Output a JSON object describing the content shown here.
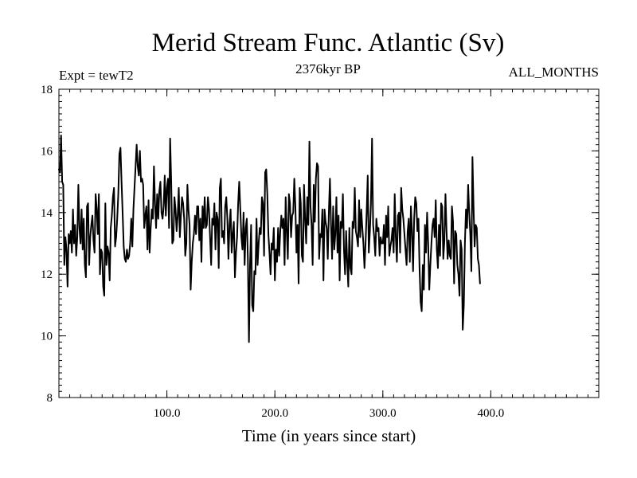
{
  "chart_data": {
    "type": "line",
    "title": "Merid Stream Func. Atlantic (Sv)",
    "subtitle_left": "Expt = tewT2",
    "subtitle_center": "2376kyr BP",
    "subtitle_right": "ALL_MONTHS",
    "xlabel": "Time (in years since start)",
    "ylabel": "",
    "xlim": [
      0,
      500
    ],
    "ylim": [
      8,
      18
    ],
    "x_ticks": [
      {
        "value": 100,
        "label": "100.0"
      },
      {
        "value": 200,
        "label": "200.0"
      },
      {
        "value": 300,
        "label": "300.0"
      },
      {
        "value": 400,
        "label": "400.0"
      }
    ],
    "x_minor_step": 10,
    "y_ticks": [
      {
        "value": 8,
        "label": "8"
      },
      {
        "value": 10,
        "label": "10"
      },
      {
        "value": 12,
        "label": "12"
      },
      {
        "value": 14,
        "label": "14"
      },
      {
        "value": 16,
        "label": "16"
      },
      {
        "value": 18,
        "label": "18"
      }
    ],
    "y_minor_step": 0.2,
    "grid": false,
    "series": [
      {
        "name": "Merid Stream Func. Atlantic",
        "color": "#000000",
        "x_start": 0,
        "x_step": 1,
        "values": [
          15.4,
          15.3,
          16.5,
          15.0,
          14.9,
          12.3,
          13.2,
          12.8,
          11.6,
          13.3,
          13.0,
          13.4,
          12.7,
          14.1,
          13.0,
          13.6,
          12.6,
          13.2,
          14.9,
          13.5,
          13.0,
          14.1,
          12.8,
          13.8,
          12.3,
          11.9,
          14.2,
          14.3,
          12.3,
          13.2,
          13.6,
          13.9,
          13.1,
          12.7,
          14.6,
          14.1,
          13.3,
          14.6,
          12.0,
          12.8,
          12.7,
          11.6,
          11.3,
          14.3,
          12.3,
          12.9,
          12.7,
          11.8,
          13.5,
          13.9,
          14.5,
          14.8,
          12.9,
          13.2,
          13.8,
          14.6,
          15.9,
          16.1,
          15.0,
          14.0,
          12.9,
          12.5,
          12.4,
          12.8,
          12.5,
          12.6,
          13.0,
          13.8,
          12.9,
          14.1,
          14.8,
          15.5,
          16.2,
          15.5,
          15.2,
          16.0,
          15.0,
          15.1,
          14.9,
          13.5,
          13.9,
          14.2,
          12.8,
          14.4,
          12.7,
          13.5,
          14.1,
          13.8,
          15.5,
          14.3,
          13.5,
          14.6,
          13.8,
          14.7,
          15.0,
          14.0,
          13.8,
          14.2,
          15.2,
          13.9,
          14.8,
          15.1,
          13.5,
          16.4,
          15.0,
          13.0,
          13.1,
          14.5,
          14.1,
          13.4,
          13.9,
          14.8,
          13.2,
          13.9,
          14.5,
          14.3,
          13.8,
          12.6,
          13.0,
          14.9,
          14.1,
          13.6,
          11.5,
          12.4,
          13.0,
          13.3,
          13.9,
          13.3,
          14.2,
          14.2,
          13.1,
          13.8,
          12.4,
          14.2,
          13.5,
          14.5,
          13.5,
          13.6,
          14.5,
          14.1,
          13.2,
          12.3,
          13.8,
          13.6,
          14.3,
          12.8,
          14.0,
          13.8,
          12.2,
          14.8,
          15.1,
          13.2,
          13.4,
          13.0,
          14.2,
          14.5,
          13.8,
          12.5,
          13.6,
          14.1,
          12.7,
          13.3,
          13.7,
          11.9,
          12.7,
          13.2,
          14.3,
          15.0,
          14.1,
          13.2,
          12.8,
          14.0,
          12.3,
          13.5,
          13.8,
          12.5,
          9.8,
          12.3,
          13.6,
          11.0,
          10.8,
          12.1,
          12.0,
          13.8,
          12.3,
          13.0,
          13.5,
          13.3,
          14.5,
          14.3,
          12.6,
          15.3,
          15.4,
          14.6,
          13.3,
          12.7,
          12.0,
          13.0,
          12.8,
          13.5,
          11.8,
          12.8,
          12.4,
          13.5,
          12.6,
          13.4,
          13.9,
          13.5,
          13.8,
          12.3,
          14.5,
          13.4,
          12.5,
          14.6,
          14.3,
          13.2,
          13.9,
          14.0,
          15.1,
          14.2,
          12.7,
          13.6,
          11.7,
          14.8,
          14.3,
          12.6,
          12.4,
          14.9,
          13.8,
          13.0,
          14.5,
          13.6,
          16.3,
          14.2,
          13.6,
          12.3,
          14.9,
          13.7,
          15.1,
          15.6,
          15.5,
          12.5,
          13.3,
          13.2,
          14.1,
          11.8,
          14.1,
          13.7,
          13.5,
          12.5,
          14.0,
          15.1,
          13.6,
          12.5,
          14.2,
          12.8,
          13.3,
          14.5,
          12.7,
          13.9,
          11.8,
          13.7,
          13.5,
          14.6,
          12.8,
          12.0,
          13.4,
          12.4,
          11.6,
          13.5,
          12.2,
          12.0,
          13.7,
          13.5,
          14.8,
          13.4,
          13.2,
          12.9,
          14.4,
          13.2,
          14.1,
          13.5,
          13.0,
          12.2,
          13.0,
          14.0,
          15.2,
          12.7,
          13.4,
          14.3,
          16.4,
          13.6,
          13.2,
          12.6,
          13.8,
          13.4,
          13.5,
          12.6,
          13.2,
          13.0,
          13.0,
          13.6,
          12.3,
          13.9,
          13.2,
          14.2,
          12.6,
          12.9,
          13.1,
          13.5,
          12.7,
          14.6,
          13.2,
          12.4,
          13.9,
          14.0,
          12.7,
          14.8,
          14.1,
          13.8,
          13.3,
          12.8,
          12.3,
          13.4,
          13.8,
          12.4,
          14.2,
          13.4,
          12.1,
          13.8,
          14.5,
          14.3,
          13.4,
          13.8,
          12.2,
          11.1,
          10.8,
          12.3,
          11.5,
          13.6,
          12.7,
          14.0,
          13.0,
          11.5,
          12.3,
          13.0,
          13.6,
          13.8,
          13.2,
          14.4,
          12.8,
          12.2,
          13.6,
          12.6,
          14.3,
          14.2,
          12.5,
          13.1,
          14.6,
          13.4,
          12.5,
          13.1,
          12.6,
          12.5,
          14.2,
          13.7,
          11.7,
          13.4,
          13.3,
          12.3,
          12.0,
          11.3,
          13.1,
          12.8,
          10.2,
          11.0,
          13.0,
          14.1,
          13.5,
          14.9,
          14.0,
          13.3,
          12.1,
          15.8,
          14.2,
          12.9,
          13.6,
          13.5,
          12.5,
          12.3,
          11.7
        ]
      }
    ]
  }
}
